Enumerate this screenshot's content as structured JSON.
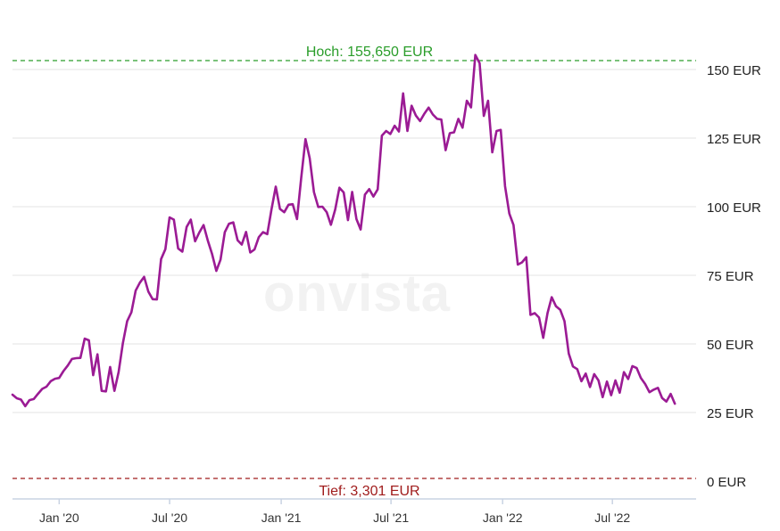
{
  "chart_data": {
    "type": "line",
    "watermark": "onvista",
    "high": {
      "label": "Hoch: 155,650 EUR",
      "value": 155.65,
      "color": "#2a9d2a"
    },
    "low": {
      "label": "Tief: 3,301 EUR",
      "value": 3.301,
      "color": "#a01c1c"
    },
    "ylim": [
      0,
      160
    ],
    "y_ticks": [
      {
        "value": 0,
        "label": "0 EUR"
      },
      {
        "value": 25,
        "label": "25 EUR"
      },
      {
        "value": 50,
        "label": "50 EUR"
      },
      {
        "value": 75,
        "label": "75 EUR"
      },
      {
        "value": 100,
        "label": "100 EUR"
      },
      {
        "value": 125,
        "label": "125 EUR"
      },
      {
        "value": 150,
        "label": "150 EUR"
      }
    ],
    "x_range": [
      "2019-10-16",
      "2022-11-16"
    ],
    "x_ticks": [
      {
        "date": "2020-01-01",
        "label": "Jan '20"
      },
      {
        "date": "2020-07-01",
        "label": "Jul '20"
      },
      {
        "date": "2021-01-01",
        "label": "Jan '21"
      },
      {
        "date": "2021-07-01",
        "label": "Jul '21"
      },
      {
        "date": "2022-01-01",
        "label": "Jan '22"
      },
      {
        "date": "2022-07-01",
        "label": "Jul '22"
      }
    ],
    "grid": true,
    "series": [
      {
        "color": "#9b1b94",
        "points": [
          [
            "2019-10-16",
            31.5
          ],
          [
            "2019-10-23",
            30.2
          ],
          [
            "2019-10-30",
            29.7
          ],
          [
            "2019-11-06",
            27.3
          ],
          [
            "2019-11-13",
            29.5
          ],
          [
            "2019-11-20",
            29.9
          ],
          [
            "2019-11-27",
            31.8
          ],
          [
            "2019-12-04",
            33.6
          ],
          [
            "2019-12-11",
            34.4
          ],
          [
            "2019-12-18",
            36.4
          ],
          [
            "2019-12-25",
            37.3
          ],
          [
            "2020-01-01",
            37.6
          ],
          [
            "2020-01-08",
            40.1
          ],
          [
            "2020-01-15",
            42.1
          ],
          [
            "2020-01-22",
            44.5
          ],
          [
            "2020-01-29",
            44.8
          ],
          [
            "2020-02-05",
            44.9
          ],
          [
            "2020-02-12",
            51.9
          ],
          [
            "2020-02-19",
            51.3
          ],
          [
            "2020-02-26",
            38.6
          ],
          [
            "2020-03-04",
            46.2
          ],
          [
            "2020-03-11",
            32.9
          ],
          [
            "2020-03-18",
            32.7
          ],
          [
            "2020-03-25",
            41.6
          ],
          [
            "2020-04-01",
            32.9
          ],
          [
            "2020-04-08",
            39.7
          ],
          [
            "2020-04-15",
            50.3
          ],
          [
            "2020-04-22",
            58.3
          ],
          [
            "2020-04-29",
            61.5
          ],
          [
            "2020-05-06",
            69.4
          ],
          [
            "2020-05-13",
            72.3
          ],
          [
            "2020-05-20",
            74.4
          ],
          [
            "2020-05-27",
            69.1
          ],
          [
            "2020-06-03",
            66.3
          ],
          [
            "2020-06-10",
            66.2
          ],
          [
            "2020-06-17",
            80.9
          ],
          [
            "2020-06-24",
            84.5
          ],
          [
            "2020-07-01",
            96.1
          ],
          [
            "2020-07-08",
            95.3
          ],
          [
            "2020-07-15",
            84.8
          ],
          [
            "2020-07-22",
            83.6
          ],
          [
            "2020-07-29",
            92.6
          ],
          [
            "2020-08-05",
            95.3
          ],
          [
            "2020-08-12",
            87.4
          ],
          [
            "2020-08-19",
            90.6
          ],
          [
            "2020-08-26",
            93.3
          ],
          [
            "2020-09-02",
            87.6
          ],
          [
            "2020-09-09",
            82.8
          ],
          [
            "2020-09-16",
            76.6
          ],
          [
            "2020-09-23",
            80.7
          ],
          [
            "2020-09-30",
            90.7
          ],
          [
            "2020-10-07",
            93.8
          ],
          [
            "2020-10-14",
            94.3
          ],
          [
            "2020-10-21",
            87.8
          ],
          [
            "2020-10-28",
            86.2
          ],
          [
            "2020-11-04",
            90.8
          ],
          [
            "2020-11-11",
            83.3
          ],
          [
            "2020-11-18",
            84.4
          ],
          [
            "2020-11-25",
            88.9
          ],
          [
            "2020-12-02",
            90.7
          ],
          [
            "2020-12-09",
            90.0
          ],
          [
            "2020-12-16",
            99.0
          ],
          [
            "2020-12-23",
            107.3
          ],
          [
            "2020-12-30",
            99.2
          ],
          [
            "2021-01-06",
            98.0
          ],
          [
            "2021-01-13",
            100.7
          ],
          [
            "2021-01-20",
            100.9
          ],
          [
            "2021-01-27",
            95.5
          ],
          [
            "2021-02-03",
            110.5
          ],
          [
            "2021-02-10",
            124.6
          ],
          [
            "2021-02-17",
            117.7
          ],
          [
            "2021-02-24",
            105.3
          ],
          [
            "2021-03-03",
            99.9
          ],
          [
            "2021-03-10",
            100.0
          ],
          [
            "2021-03-17",
            98.0
          ],
          [
            "2021-03-24",
            93.4
          ],
          [
            "2021-03-31",
            99.0
          ],
          [
            "2021-04-07",
            106.9
          ],
          [
            "2021-04-14",
            105.2
          ],
          [
            "2021-04-21",
            95.1
          ],
          [
            "2021-04-28",
            105.4
          ],
          [
            "2021-05-05",
            95.5
          ],
          [
            "2021-05-12",
            91.7
          ],
          [
            "2021-05-19",
            104.4
          ],
          [
            "2021-05-26",
            106.4
          ],
          [
            "2021-06-02",
            103.7
          ],
          [
            "2021-06-09",
            106.3
          ],
          [
            "2021-06-16",
            125.9
          ],
          [
            "2021-06-23",
            127.6
          ],
          [
            "2021-06-30",
            126.5
          ],
          [
            "2021-07-07",
            129.5
          ],
          [
            "2021-07-14",
            127.4
          ],
          [
            "2021-07-21",
            141.3
          ],
          [
            "2021-07-28",
            127.6
          ],
          [
            "2021-08-04",
            136.8
          ],
          [
            "2021-08-11",
            133.2
          ],
          [
            "2021-08-18",
            131.2
          ],
          [
            "2021-08-25",
            133.9
          ],
          [
            "2021-09-01",
            136.1
          ],
          [
            "2021-09-08",
            133.6
          ],
          [
            "2021-09-15",
            132.0
          ],
          [
            "2021-09-22",
            131.8
          ],
          [
            "2021-09-29",
            120.6
          ],
          [
            "2021-10-06",
            126.8
          ],
          [
            "2021-10-13",
            127.1
          ],
          [
            "2021-10-20",
            132.0
          ],
          [
            "2021-10-27",
            128.8
          ],
          [
            "2021-11-03",
            138.6
          ],
          [
            "2021-11-10",
            136.2
          ],
          [
            "2021-11-17",
            155.3
          ],
          [
            "2021-11-24",
            152.3
          ],
          [
            "2021-12-01",
            133.1
          ],
          [
            "2021-12-08",
            138.6
          ],
          [
            "2021-12-15",
            119.8
          ],
          [
            "2021-12-22",
            127.6
          ],
          [
            "2021-12-29",
            128.0
          ],
          [
            "2022-01-05",
            107.5
          ],
          [
            "2022-01-12",
            97.5
          ],
          [
            "2022-01-19",
            93.3
          ],
          [
            "2022-01-26",
            78.9
          ],
          [
            "2022-02-02",
            79.7
          ],
          [
            "2022-02-09",
            81.6
          ],
          [
            "2022-02-16",
            60.6
          ],
          [
            "2022-02-23",
            61.2
          ],
          [
            "2022-03-02",
            59.6
          ],
          [
            "2022-03-09",
            52.2
          ],
          [
            "2022-03-16",
            61.2
          ],
          [
            "2022-03-23",
            67.0
          ],
          [
            "2022-03-30",
            63.7
          ],
          [
            "2022-04-06",
            62.4
          ],
          [
            "2022-04-13",
            58.3
          ],
          [
            "2022-04-20",
            46.5
          ],
          [
            "2022-04-27",
            41.8
          ],
          [
            "2022-05-04",
            40.8
          ],
          [
            "2022-05-11",
            36.4
          ],
          [
            "2022-05-18",
            39.2
          ],
          [
            "2022-05-25",
            34.3
          ],
          [
            "2022-06-01",
            39.0
          ],
          [
            "2022-06-08",
            36.7
          ],
          [
            "2022-06-15",
            30.6
          ],
          [
            "2022-06-22",
            36.3
          ],
          [
            "2022-06-29",
            31.3
          ],
          [
            "2022-07-06",
            36.7
          ],
          [
            "2022-07-13",
            32.2
          ],
          [
            "2022-07-20",
            39.7
          ],
          [
            "2022-07-27",
            37.2
          ],
          [
            "2022-08-03",
            41.9
          ],
          [
            "2022-08-10",
            41.2
          ],
          [
            "2022-08-17",
            37.6
          ],
          [
            "2022-08-24",
            35.4
          ],
          [
            "2022-08-31",
            32.4
          ],
          [
            "2022-09-07",
            33.3
          ],
          [
            "2022-09-14",
            34.0
          ],
          [
            "2022-09-21",
            30.3
          ],
          [
            "2022-09-28",
            29.0
          ],
          [
            "2022-10-05",
            31.8
          ],
          [
            "2022-10-12",
            28.2
          ]
        ]
      }
    ]
  }
}
